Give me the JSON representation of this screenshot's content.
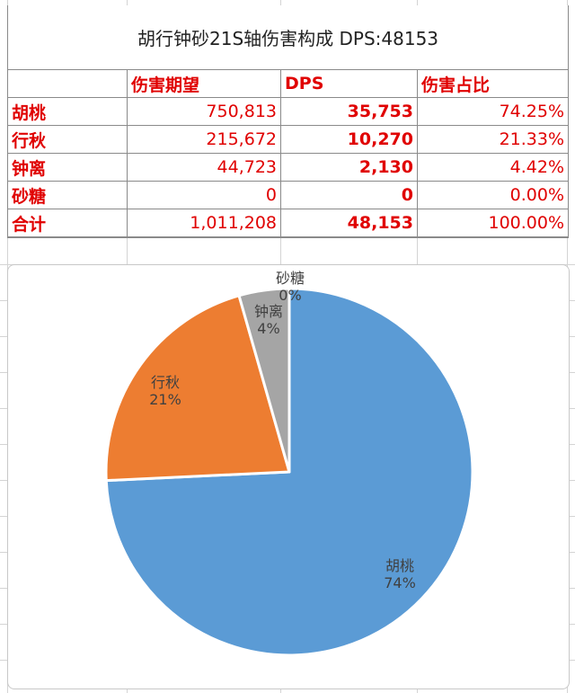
{
  "table": {
    "title": "胡行钟砂21S轴伤害构成 DPS:48153",
    "headers": [
      "伤害期望",
      "DPS",
      "伤害占比"
    ],
    "rows": [
      {
        "name": "胡桃",
        "expected": "750,813",
        "dps": "35,753",
        "share": "74.25%"
      },
      {
        "name": "行秋",
        "expected": "215,672",
        "dps": "10,270",
        "share": "21.33%"
      },
      {
        "name": "钟离",
        "expected": "44,723",
        "dps": "2,130",
        "share": "4.42%"
      },
      {
        "name": "砂糖",
        "expected": "0",
        "dps": "0",
        "share": "0.00%"
      },
      {
        "name": "合计",
        "expected": "1,011,208",
        "dps": "48,153",
        "share": "100.00%"
      }
    ]
  },
  "colors": {
    "text_red": "#e00000",
    "slice_hutao": "#5b9bd5",
    "slice_xingqiu": "#ed7d31",
    "slice_zhongli": "#a5a5a5",
    "slice_sucrose": "#ffc000"
  },
  "chart_data": {
    "type": "pie",
    "title": "",
    "categories": [
      "胡桃",
      "行秋",
      "钟离",
      "砂糖"
    ],
    "values": [
      35753,
      10270,
      2130,
      0
    ],
    "percent_labels": [
      "74%",
      "21%",
      "4%",
      "0%"
    ],
    "legend": "none",
    "data_labels": "category name and percentage"
  }
}
